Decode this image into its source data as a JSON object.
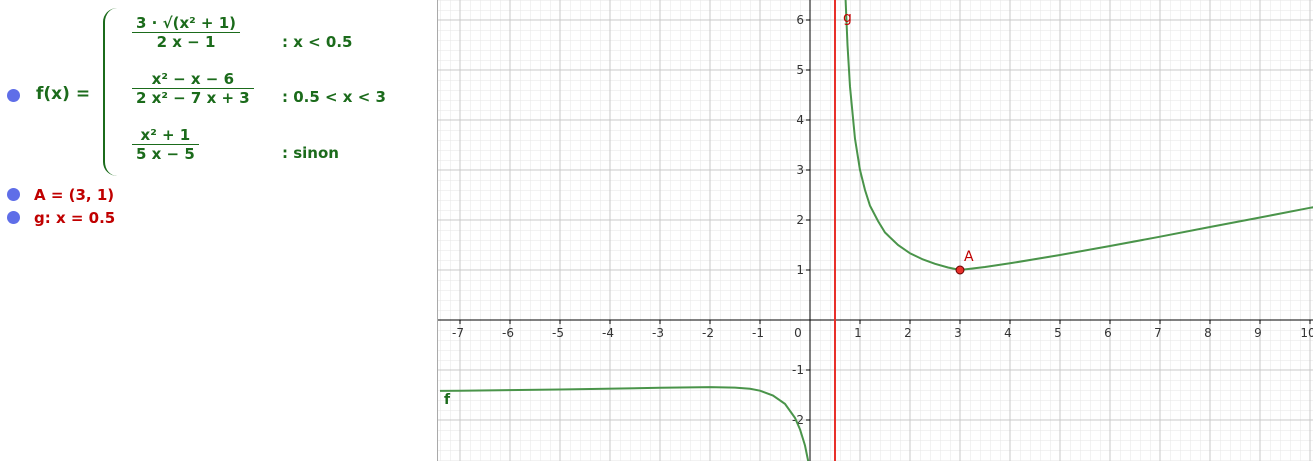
{
  "algebra_view": {
    "f": {
      "label": "f(x) =",
      "cases": [
        {
          "numerator": "3 · √(x² + 1)",
          "denominator": "2 x − 1",
          "condition": ": x < 0.5"
        },
        {
          "numerator": "x² − x − 6",
          "denominator": "2 x² − 7 x + 3",
          "condition": ": 0.5 < x < 3"
        },
        {
          "numerator": "x² + 1",
          "denominator": "5 x − 5",
          "condition": ": sinon"
        }
      ]
    },
    "A": "A = (3, 1)",
    "g": "g: x = 0.5"
  },
  "graphics_view": {
    "xlim": [
      -7.44,
      10.06
    ],
    "ylim": [
      -2.82,
      6.4
    ],
    "xticks": [
      -7,
      -6,
      -5,
      -4,
      -3,
      -2,
      -1,
      0,
      1,
      2,
      3,
      4,
      5,
      6,
      7,
      8,
      9,
      10
    ],
    "yticks": [
      -2,
      -1,
      1,
      2,
      3,
      4,
      5,
      6
    ],
    "grid": true,
    "point_A": {
      "label": "A",
      "x": 3,
      "y": 1
    },
    "line_g": {
      "label": "g",
      "x": 0.5
    },
    "curve_f": {
      "label": "f"
    }
  }
}
